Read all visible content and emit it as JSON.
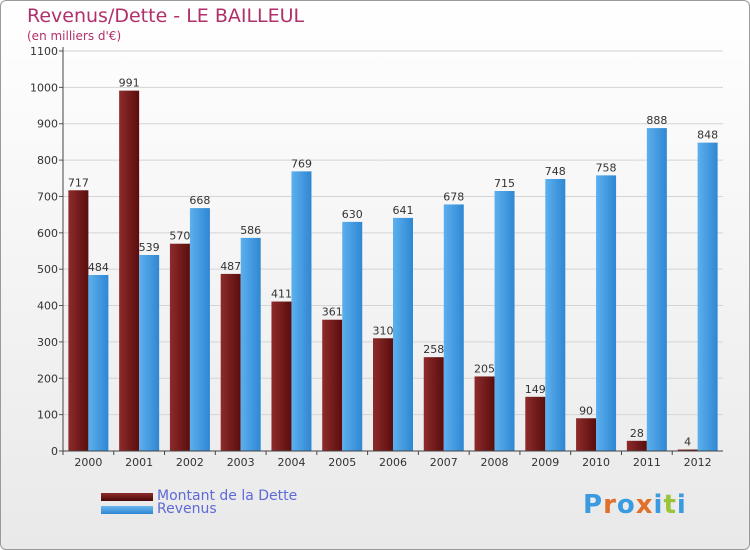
{
  "chart_data": {
    "type": "bar",
    "title": "Revenus/Dette - LE BAILLEUL",
    "subtitle": "(en milliers d'€)",
    "xlabel": "",
    "ylabel": "",
    "ylim": [
      0,
      1100
    ],
    "yticks": [
      0,
      100,
      200,
      300,
      400,
      500,
      600,
      700,
      800,
      900,
      1000,
      1100
    ],
    "grid": true,
    "legend_position": "bottom-left",
    "categories": [
      "2000",
      "2001",
      "2002",
      "2003",
      "2004",
      "2005",
      "2006",
      "2007",
      "2008",
      "2009",
      "2010",
      "2011",
      "2012"
    ],
    "series": [
      {
        "name": "Montant de la Dette",
        "color": "#7a1c1c",
        "values": [
          717,
          991,
          570,
          487,
          411,
          361,
          310,
          258,
          205,
          149,
          90,
          28,
          4
        ]
      },
      {
        "name": "Revenus",
        "color": "#3d97e0",
        "values": [
          484,
          539,
          668,
          586,
          769,
          630,
          641,
          678,
          715,
          748,
          758,
          888,
          848
        ]
      }
    ]
  },
  "logo": {
    "text": "Proxiti",
    "colors": [
      "#3a9be0",
      "#e0702a",
      "#3a9be0",
      "#e0702a",
      "#3a9be0",
      "#9ac43a",
      "#3a9be0"
    ]
  }
}
